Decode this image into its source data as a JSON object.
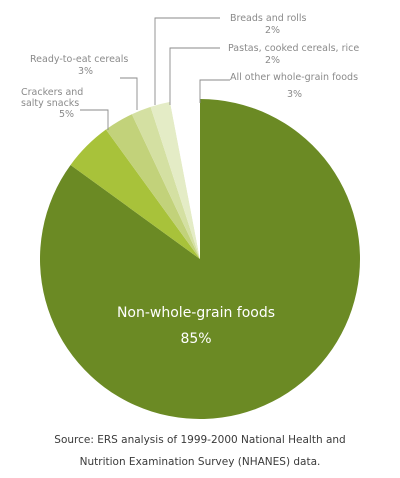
{
  "chart_data": {
    "type": "pie",
    "slices": [
      {
        "label": "Non-whole-grain foods",
        "value": 85,
        "display": "85%",
        "color": "#6b8a24"
      },
      {
        "label": "Crackers and salty snacks",
        "value": 5,
        "display": "5%",
        "color": "#a8c23a"
      },
      {
        "label": "Ready-to-eat cereals",
        "value": 3,
        "display": "3%",
        "color": "#c2d27a"
      },
      {
        "label": "Breads and rolls",
        "value": 2,
        "display": "2%",
        "color": "#d4e0a2"
      },
      {
        "label": "Pastas, cooked cereals, rice",
        "value": 2,
        "display": "2%",
        "color": "#e4ecc6"
      },
      {
        "label": "All other whole-grain foods",
        "value": 3,
        "display": "3%",
        "color": "#ffffff"
      }
    ],
    "callouts": {
      "crackers": {
        "line1": "Crackers and",
        "line2": "salty snacks",
        "pct": "5%"
      },
      "cereals": {
        "line1": "Ready-to-eat cereals",
        "pct": "3%"
      },
      "breads": {
        "line1": "Breads and rolls",
        "pct": "2%"
      },
      "pastas": {
        "line1": "Pastas, cooked cereals, rice",
        "pct": "2%"
      },
      "other": {
        "line1": "All other whole-grain foods",
        "pct": "3%"
      }
    },
    "main_label": {
      "line1": "Non-whole-grain foods",
      "pct": "85%"
    },
    "source_line1": "Source: ERS analysis of 1999-2000 National Health and",
    "source_line2": "Nutrition Examination Survey (NHANES) data."
  }
}
